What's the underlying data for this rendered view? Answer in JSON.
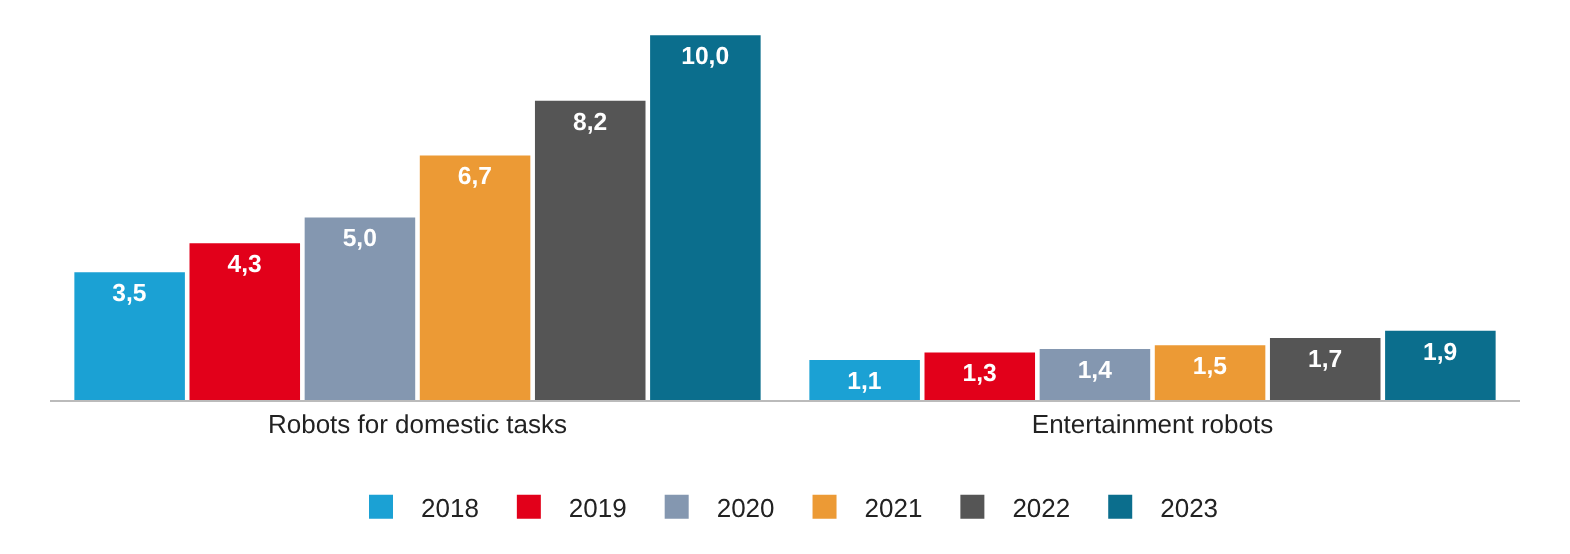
{
  "chart_data": {
    "type": "bar",
    "categories": [
      "Robots for domestic tasks",
      "Entertainment robots"
    ],
    "series": [
      {
        "name": "2018",
        "color": "#1ba1d4",
        "values": [
          3.5,
          1.1
        ],
        "value_labels": [
          "3,5",
          "1,1"
        ]
      },
      {
        "name": "2019",
        "color": "#e2001a",
        "values": [
          4.3,
          1.3
        ],
        "value_labels": [
          "4,3",
          "1,3"
        ]
      },
      {
        "name": "2020",
        "color": "#8497b0",
        "values": [
          5.0,
          1.4
        ],
        "value_labels": [
          "5,0",
          "1,4"
        ]
      },
      {
        "name": "2021",
        "color": "#ec9a35",
        "values": [
          6.7,
          1.5
        ],
        "value_labels": [
          "6,7",
          "1,5"
        ]
      },
      {
        "name": "2022",
        "color": "#555555",
        "values": [
          8.2,
          1.7
        ],
        "value_labels": [
          "8,2",
          "1,7"
        ]
      },
      {
        "name": "2023",
        "color": "#0b6e8d",
        "values": [
          10.0,
          1.9
        ],
        "value_labels": [
          "10,0",
          "1,9"
        ]
      }
    ],
    "legend": "bottom"
  }
}
